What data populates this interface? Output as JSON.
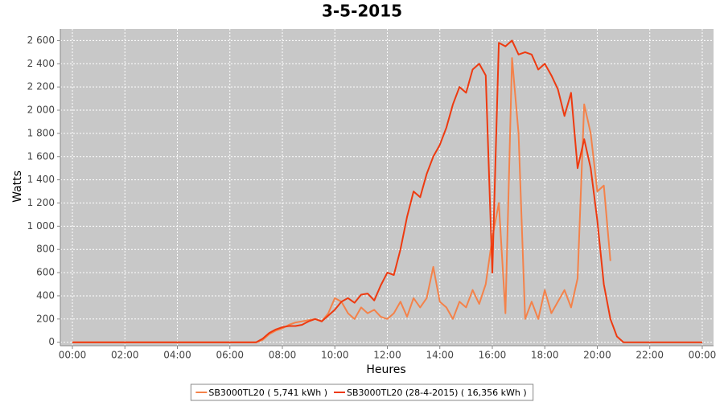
{
  "chart_data": {
    "type": "line",
    "title": "3-5-2015",
    "x_label": "Heures",
    "y_label": "Watts",
    "x": [
      0,
      6.5,
      7,
      7.25,
      7.5,
      7.75,
      8,
      8.25,
      8.5,
      8.75,
      9,
      9.25,
      9.5,
      9.75,
      10,
      10.25,
      10.5,
      10.75,
      11,
      11.25,
      11.5,
      11.75,
      12,
      12.25,
      12.5,
      12.75,
      13,
      13.25,
      13.5,
      13.75,
      14,
      14.25,
      14.5,
      14.75,
      15,
      15.25,
      15.5,
      15.75,
      16,
      16.25,
      16.5,
      16.75,
      17,
      17.25,
      17.5,
      17.75,
      18,
      18.25,
      18.5,
      18.75,
      19,
      19.25,
      19.5,
      19.75,
      20,
      20.25,
      20.5,
      20.75,
      21,
      24
    ],
    "series": [
      {
        "name": "SB3000TL20 ( 5,741 kWh )",
        "color": "#f4824a",
        "values": [
          0,
          0,
          0,
          20,
          70,
          100,
          120,
          150,
          170,
          180,
          190,
          200,
          180,
          250,
          380,
          350,
          250,
          200,
          300,
          250,
          280,
          220,
          200,
          250,
          350,
          220,
          380,
          300,
          380,
          650,
          350,
          300,
          200,
          350,
          300,
          450,
          330,
          500,
          900,
          1200,
          250,
          2450,
          1800,
          200,
          350,
          200,
          450,
          250,
          350,
          450,
          300,
          550,
          2050,
          1800,
          1300,
          1350,
          700,
          null,
          null,
          null
        ]
      },
      {
        "name": "SB3000TL20 (28-4-2015) ( 16,356 kWh )",
        "color": "#ee3a10",
        "values": [
          0,
          0,
          0,
          30,
          80,
          110,
          130,
          140,
          140,
          150,
          180,
          200,
          180,
          230,
          280,
          350,
          380,
          340,
          410,
          420,
          360,
          490,
          600,
          580,
          800,
          1080,
          1300,
          1250,
          1450,
          1600,
          1700,
          1850,
          2050,
          2200,
          2150,
          2350,
          2400,
          2300,
          600,
          2580,
          2550,
          2600,
          2480,
          2500,
          2480,
          2350,
          2400,
          2300,
          2180,
          1950,
          2150,
          1500,
          1750,
          1500,
          1050,
          500,
          200,
          50,
          0,
          0
        ]
      }
    ],
    "xlim": [
      -0.46,
      24.43
    ],
    "ylim": [
      -30,
      2700
    ],
    "xticks": [
      {
        "value": 0,
        "label": "00:00"
      },
      {
        "value": 2,
        "label": "02:00"
      },
      {
        "value": 4,
        "label": "04:00"
      },
      {
        "value": 6,
        "label": "06:00"
      },
      {
        "value": 8,
        "label": "08:00"
      },
      {
        "value": 10,
        "label": "10:00"
      },
      {
        "value": 12,
        "label": "12:00"
      },
      {
        "value": 14,
        "label": "14:00"
      },
      {
        "value": 16,
        "label": "16:00"
      },
      {
        "value": 18,
        "label": "18:00"
      },
      {
        "value": 20,
        "label": "20:00"
      },
      {
        "value": 22,
        "label": "22:00"
      },
      {
        "value": 24,
        "label": "00:00"
      }
    ],
    "yticks": [
      0,
      200,
      400,
      600,
      800,
      {
        "value": 1000,
        "label": "1 000"
      },
      {
        "value": 1200,
        "label": "1 200"
      },
      {
        "value": 1400,
        "label": "1 400"
      },
      {
        "value": 1600,
        "label": "1 600"
      },
      {
        "value": 1800,
        "label": "1 800"
      },
      {
        "value": 2000,
        "label": "2 000"
      },
      {
        "value": 2200,
        "label": "2 200"
      },
      {
        "value": 2400,
        "label": "2 400"
      },
      {
        "value": 2600,
        "label": "2 600"
      }
    ],
    "grid": true,
    "legend": "bottom"
  }
}
